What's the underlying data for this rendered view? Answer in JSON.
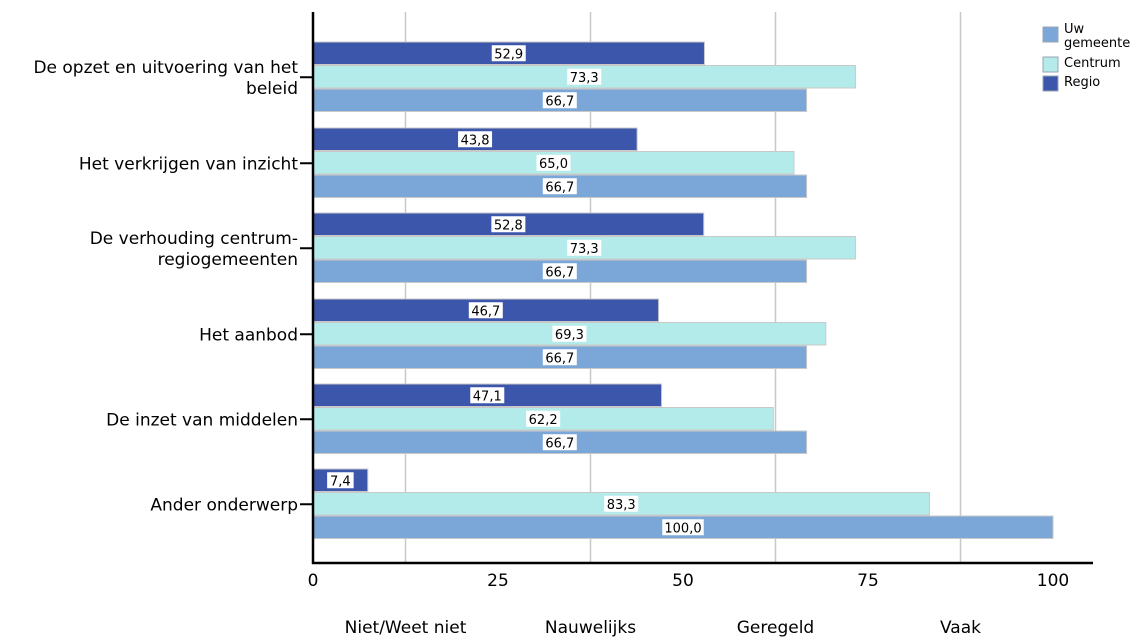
{
  "chart_data": {
    "type": "bar",
    "orientation": "horizontal",
    "categories": [
      [
        "De opzet en uitvoering van het",
        "beleid"
      ],
      [
        "Het verkrijgen van inzicht"
      ],
      [
        "De verhouding centrum-",
        "regiogemeenten"
      ],
      [
        "Het aanbod"
      ],
      [
        "De inzet van middelen"
      ],
      [
        "Ander onderwerp"
      ]
    ],
    "series": [
      {
        "name": "Regio",
        "color": "#3b56aa",
        "values": [
          52.9,
          43.8,
          52.8,
          46.7,
          47.1,
          7.4
        ],
        "labels": [
          "52,9",
          "43,8",
          "52,8",
          "46,7",
          "47,1",
          "7,4"
        ]
      },
      {
        "name": "Centrum",
        "color": "#b3ebea",
        "values": [
          73.3,
          65.0,
          73.3,
          69.3,
          62.2,
          83.3
        ],
        "labels": [
          "73,3",
          "65,0",
          "73,3",
          "69,3",
          "62,2",
          "83,3"
        ]
      },
      {
        "name": "Uw gemeente",
        "color": "#7aa7d8",
        "values": [
          66.7,
          66.7,
          66.7,
          66.7,
          66.7,
          100.0
        ],
        "labels": [
          "66,7",
          "66,7",
          "66,7",
          "66,7",
          "66,7",
          "100,0"
        ]
      }
    ],
    "legend": {
      "position": "top-right",
      "items": [
        {
          "name": "Uw gemeente",
          "lines": [
            "Uw",
            "gemeente"
          ],
          "color": "#7aa7d8"
        },
        {
          "name": "Centrum",
          "lines": [
            "Centrum"
          ],
          "color": "#b3ebea"
        },
        {
          "name": "Regio",
          "lines": [
            "Regio"
          ],
          "color": "#3b56aa"
        }
      ]
    },
    "x_ticks": [
      {
        "value": 0,
        "label": "0"
      },
      {
        "value": 25,
        "label": "25"
      },
      {
        "value": 50,
        "label": "50"
      },
      {
        "value": 75,
        "label": "75"
      },
      {
        "value": 100,
        "label": "100"
      }
    ],
    "x_gridlines": [
      12.5,
      37.5,
      62.5,
      87.5
    ],
    "x_category_labels": [
      {
        "value": 12.5,
        "label": "Niet/Weet niet"
      },
      {
        "value": 37.5,
        "label": "Nauwelijks"
      },
      {
        "value": 62.5,
        "label": "Geregeld"
      },
      {
        "value": 87.5,
        "label": "Vaak"
      }
    ],
    "xlim": [
      0,
      105
    ],
    "title": "",
    "xlabel": "",
    "ylabel": "",
    "grid": true
  }
}
